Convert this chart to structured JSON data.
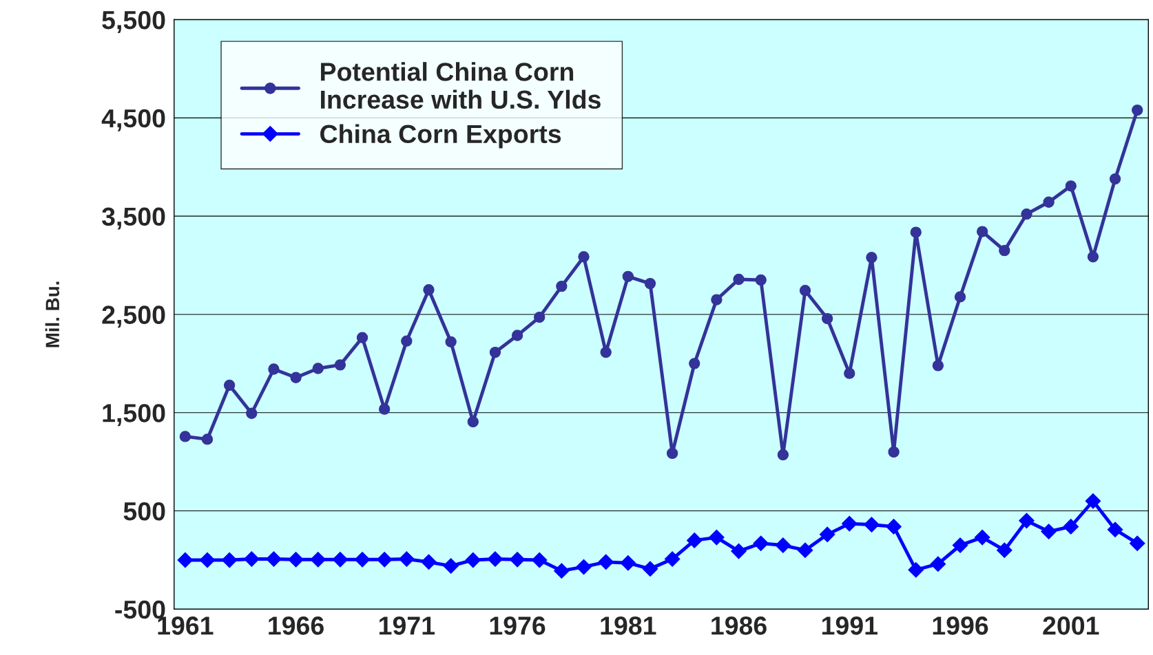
{
  "chart_data": {
    "type": "line",
    "ylabel": "Mil. Bu.",
    "x": [
      1961,
      1962,
      1963,
      1964,
      1965,
      1966,
      1967,
      1968,
      1969,
      1970,
      1971,
      1972,
      1973,
      1974,
      1975,
      1976,
      1977,
      1978,
      1979,
      1980,
      1981,
      1982,
      1983,
      1984,
      1985,
      1986,
      1987,
      1988,
      1989,
      1990,
      1991,
      1992,
      1993,
      1994,
      1995,
      1996,
      1997,
      1998,
      1999,
      2000,
      2001,
      2002,
      2003,
      2004
    ],
    "series": [
      {
        "name": "Potential China Corn\nIncrease with U.S. Ylds",
        "color": "#333399",
        "marker": "circle",
        "values": [
          1257,
          1229,
          1779,
          1493,
          1943,
          1857,
          1950,
          1986,
          2264,
          1536,
          2229,
          2750,
          2221,
          1407,
          2114,
          2286,
          2471,
          2786,
          3086,
          2114,
          2886,
          2814,
          1086,
          2000,
          2650,
          2857,
          2850,
          1071,
          2743,
          2457,
          1900,
          3079,
          1100,
          3336,
          1979,
          2679,
          3343,
          3150,
          3521,
          3643,
          3807,
          3086,
          3879,
          4579
        ]
      },
      {
        "name": "China Corn Exports",
        "color": "#0000ff",
        "marker": "diamond",
        "values": [
          0,
          0,
          0,
          10,
          10,
          5,
          5,
          5,
          5,
          5,
          10,
          -20,
          -60,
          0,
          10,
          5,
          0,
          -110,
          -70,
          -20,
          -30,
          -90,
          10,
          200,
          230,
          90,
          170,
          150,
          100,
          260,
          370,
          360,
          340,
          -100,
          -40,
          150,
          230,
          100,
          400,
          290,
          340,
          600,
          310,
          170
        ]
      }
    ],
    "xlim": [
      1960.5,
      2004.5
    ],
    "xticks": [
      1961,
      1966,
      1971,
      1976,
      1981,
      1986,
      1991,
      1996,
      2001
    ],
    "ylim": [
      -500,
      5500
    ],
    "yticks": [
      {
        "value": -500,
        "label": "-500"
      },
      {
        "value": 500,
        "label": "500"
      },
      {
        "value": 1500,
        "label": "1,500"
      },
      {
        "value": 2500,
        "label": "2,500"
      },
      {
        "value": 3500,
        "label": "3,500"
      },
      {
        "value": 4500,
        "label": "4,500"
      },
      {
        "value": 5500,
        "label": "5,500"
      }
    ],
    "grid": "y",
    "legend": "top left",
    "line_style": "solid"
  }
}
